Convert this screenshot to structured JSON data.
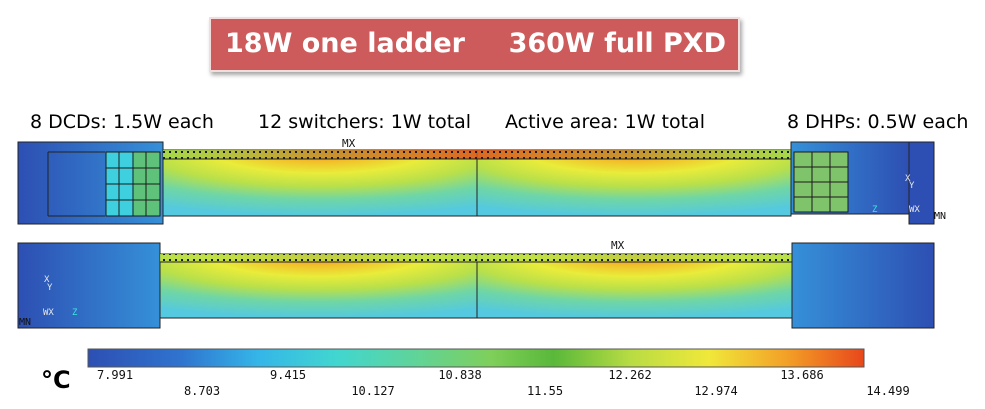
{
  "title": {
    "left": "18W one ladder",
    "right": "360W full PXD"
  },
  "captions": {
    "dcd": "8 DCDs: 1.5W each",
    "switchers": "12 switchers: 1W total",
    "active": "Active area: 1W total",
    "dhp": "8 DHPs: 0.5W each"
  },
  "markers": {
    "max_top": "MX",
    "max_bottom": "MX",
    "min_top": "MN",
    "min_bottom": "MN"
  },
  "axis_triads": {
    "top": {
      "x": "X",
      "y": "Y",
      "z": "Z",
      "w": "W",
      "wx": "WX"
    },
    "bottom": {
      "x": "X",
      "y": "Y",
      "z": "Z",
      "w": "W",
      "wx": "WX"
    }
  },
  "colorbar": {
    "unit": "°C",
    "min": 7.991,
    "max": 14.499,
    "upper_labels": [
      "7.991",
      "9.415",
      "10.838",
      "12.262",
      "13.686"
    ],
    "lower_labels": [
      "8.703",
      "10.127",
      "11.55",
      "12.974",
      "14.499"
    ],
    "colors": [
      "#2d4fb3",
      "#2f74cf",
      "#35b6e8",
      "#41d6d0",
      "#5fd49a",
      "#8fd05a",
      "#59b83a",
      "#b9dc43",
      "#f0e83a",
      "#f3a027",
      "#e8471b"
    ]
  }
}
